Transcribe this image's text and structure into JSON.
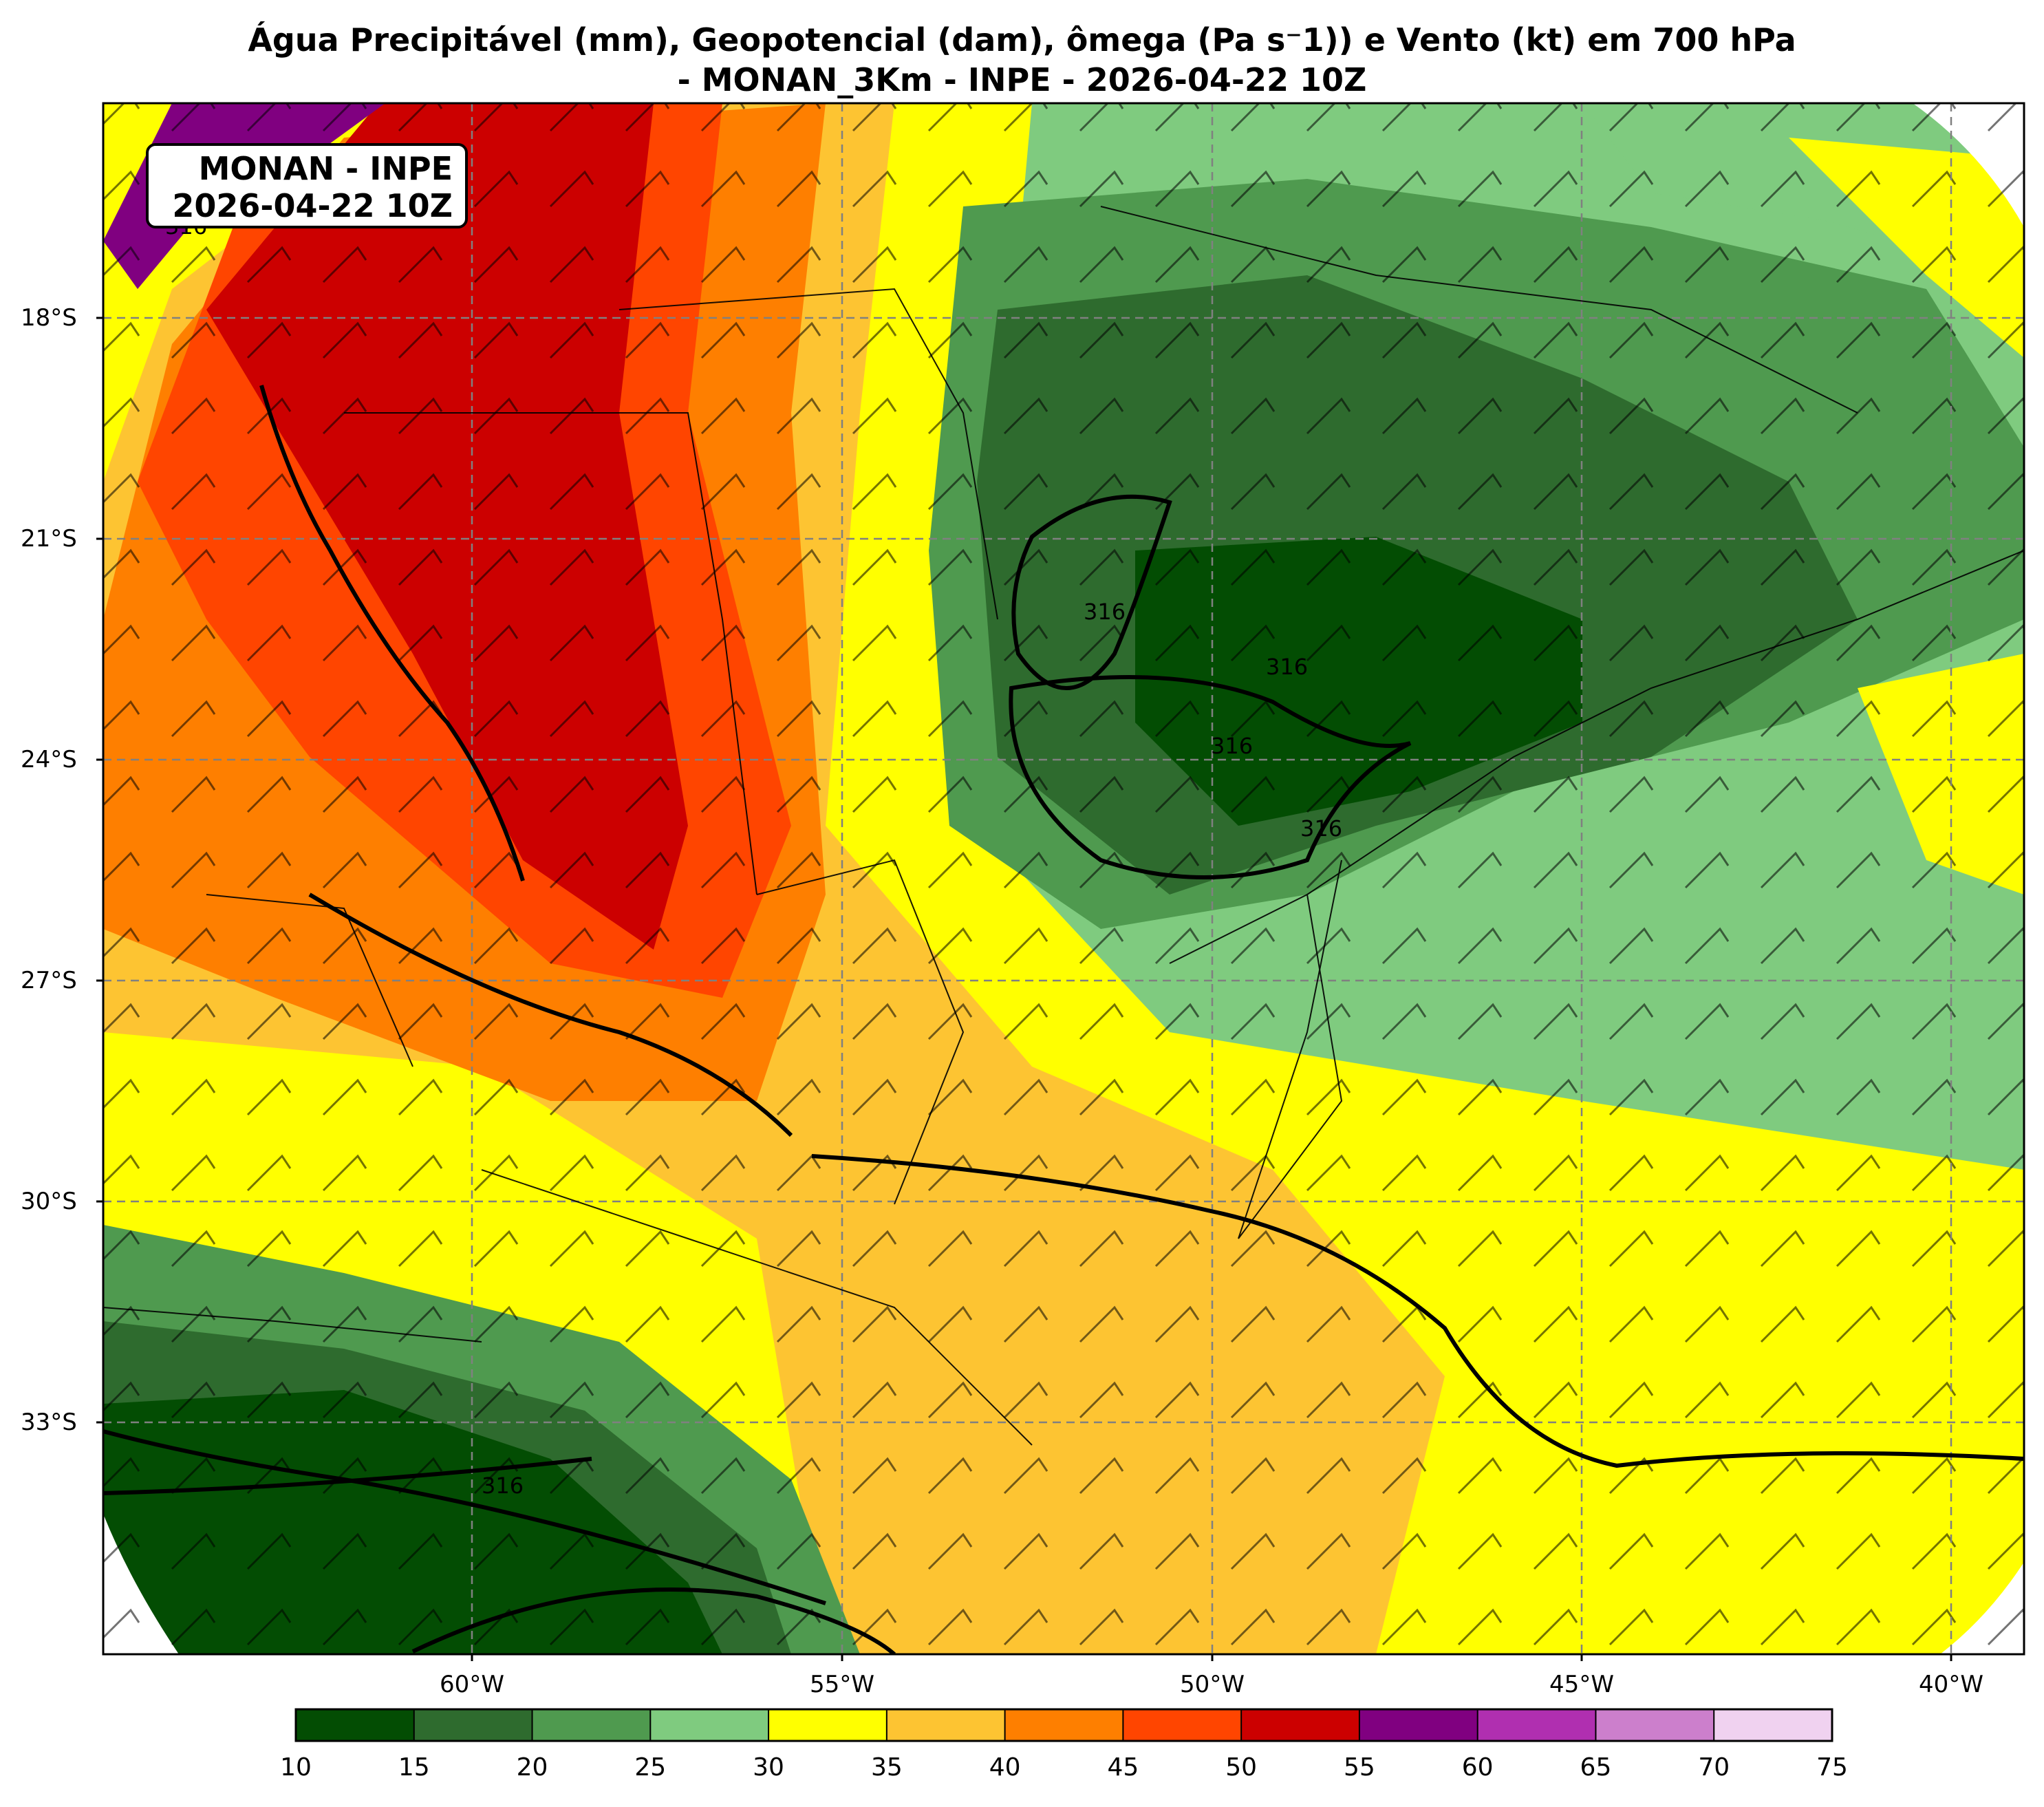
{
  "title": {
    "line1": "Água Precipitável (mm), Geopotencial (dam), ômega (Pa s⁻1)) e Vento (kt) em 700 hPa",
    "line2": "- MONAN_3Km - INPE - 2026-04-22 10Z"
  },
  "infobox": {
    "line1": "MONAN - INPE",
    "line2": "2026-04-22 10Z"
  },
  "axes": {
    "lat_ticks": [
      "18°S",
      "21°S",
      "24°S",
      "27°S",
      "30°S",
      "33°S"
    ],
    "lon_ticks": [
      "60°W",
      "55°W",
      "50°W",
      "45°W",
      "40°W"
    ]
  },
  "contour_labels": [
    "316",
    "316",
    "316",
    "316",
    "316",
    "316"
  ],
  "colorbar": {
    "ticks": [
      "10",
      "15",
      "20",
      "25",
      "30",
      "35",
      "40",
      "45",
      "50",
      "55",
      "60",
      "65",
      "70",
      "75"
    ],
    "colors": [
      "#034d03",
      "#2e6b2e",
      "#4f9a4f",
      "#7fcb7f",
      "#ffff00",
      "#fdc432",
      "#fe7f00",
      "#ff4500",
      "#cc0000",
      "#800080",
      "#b02fb0",
      "#cc7fcc",
      "#f0d2f0"
    ]
  }
}
